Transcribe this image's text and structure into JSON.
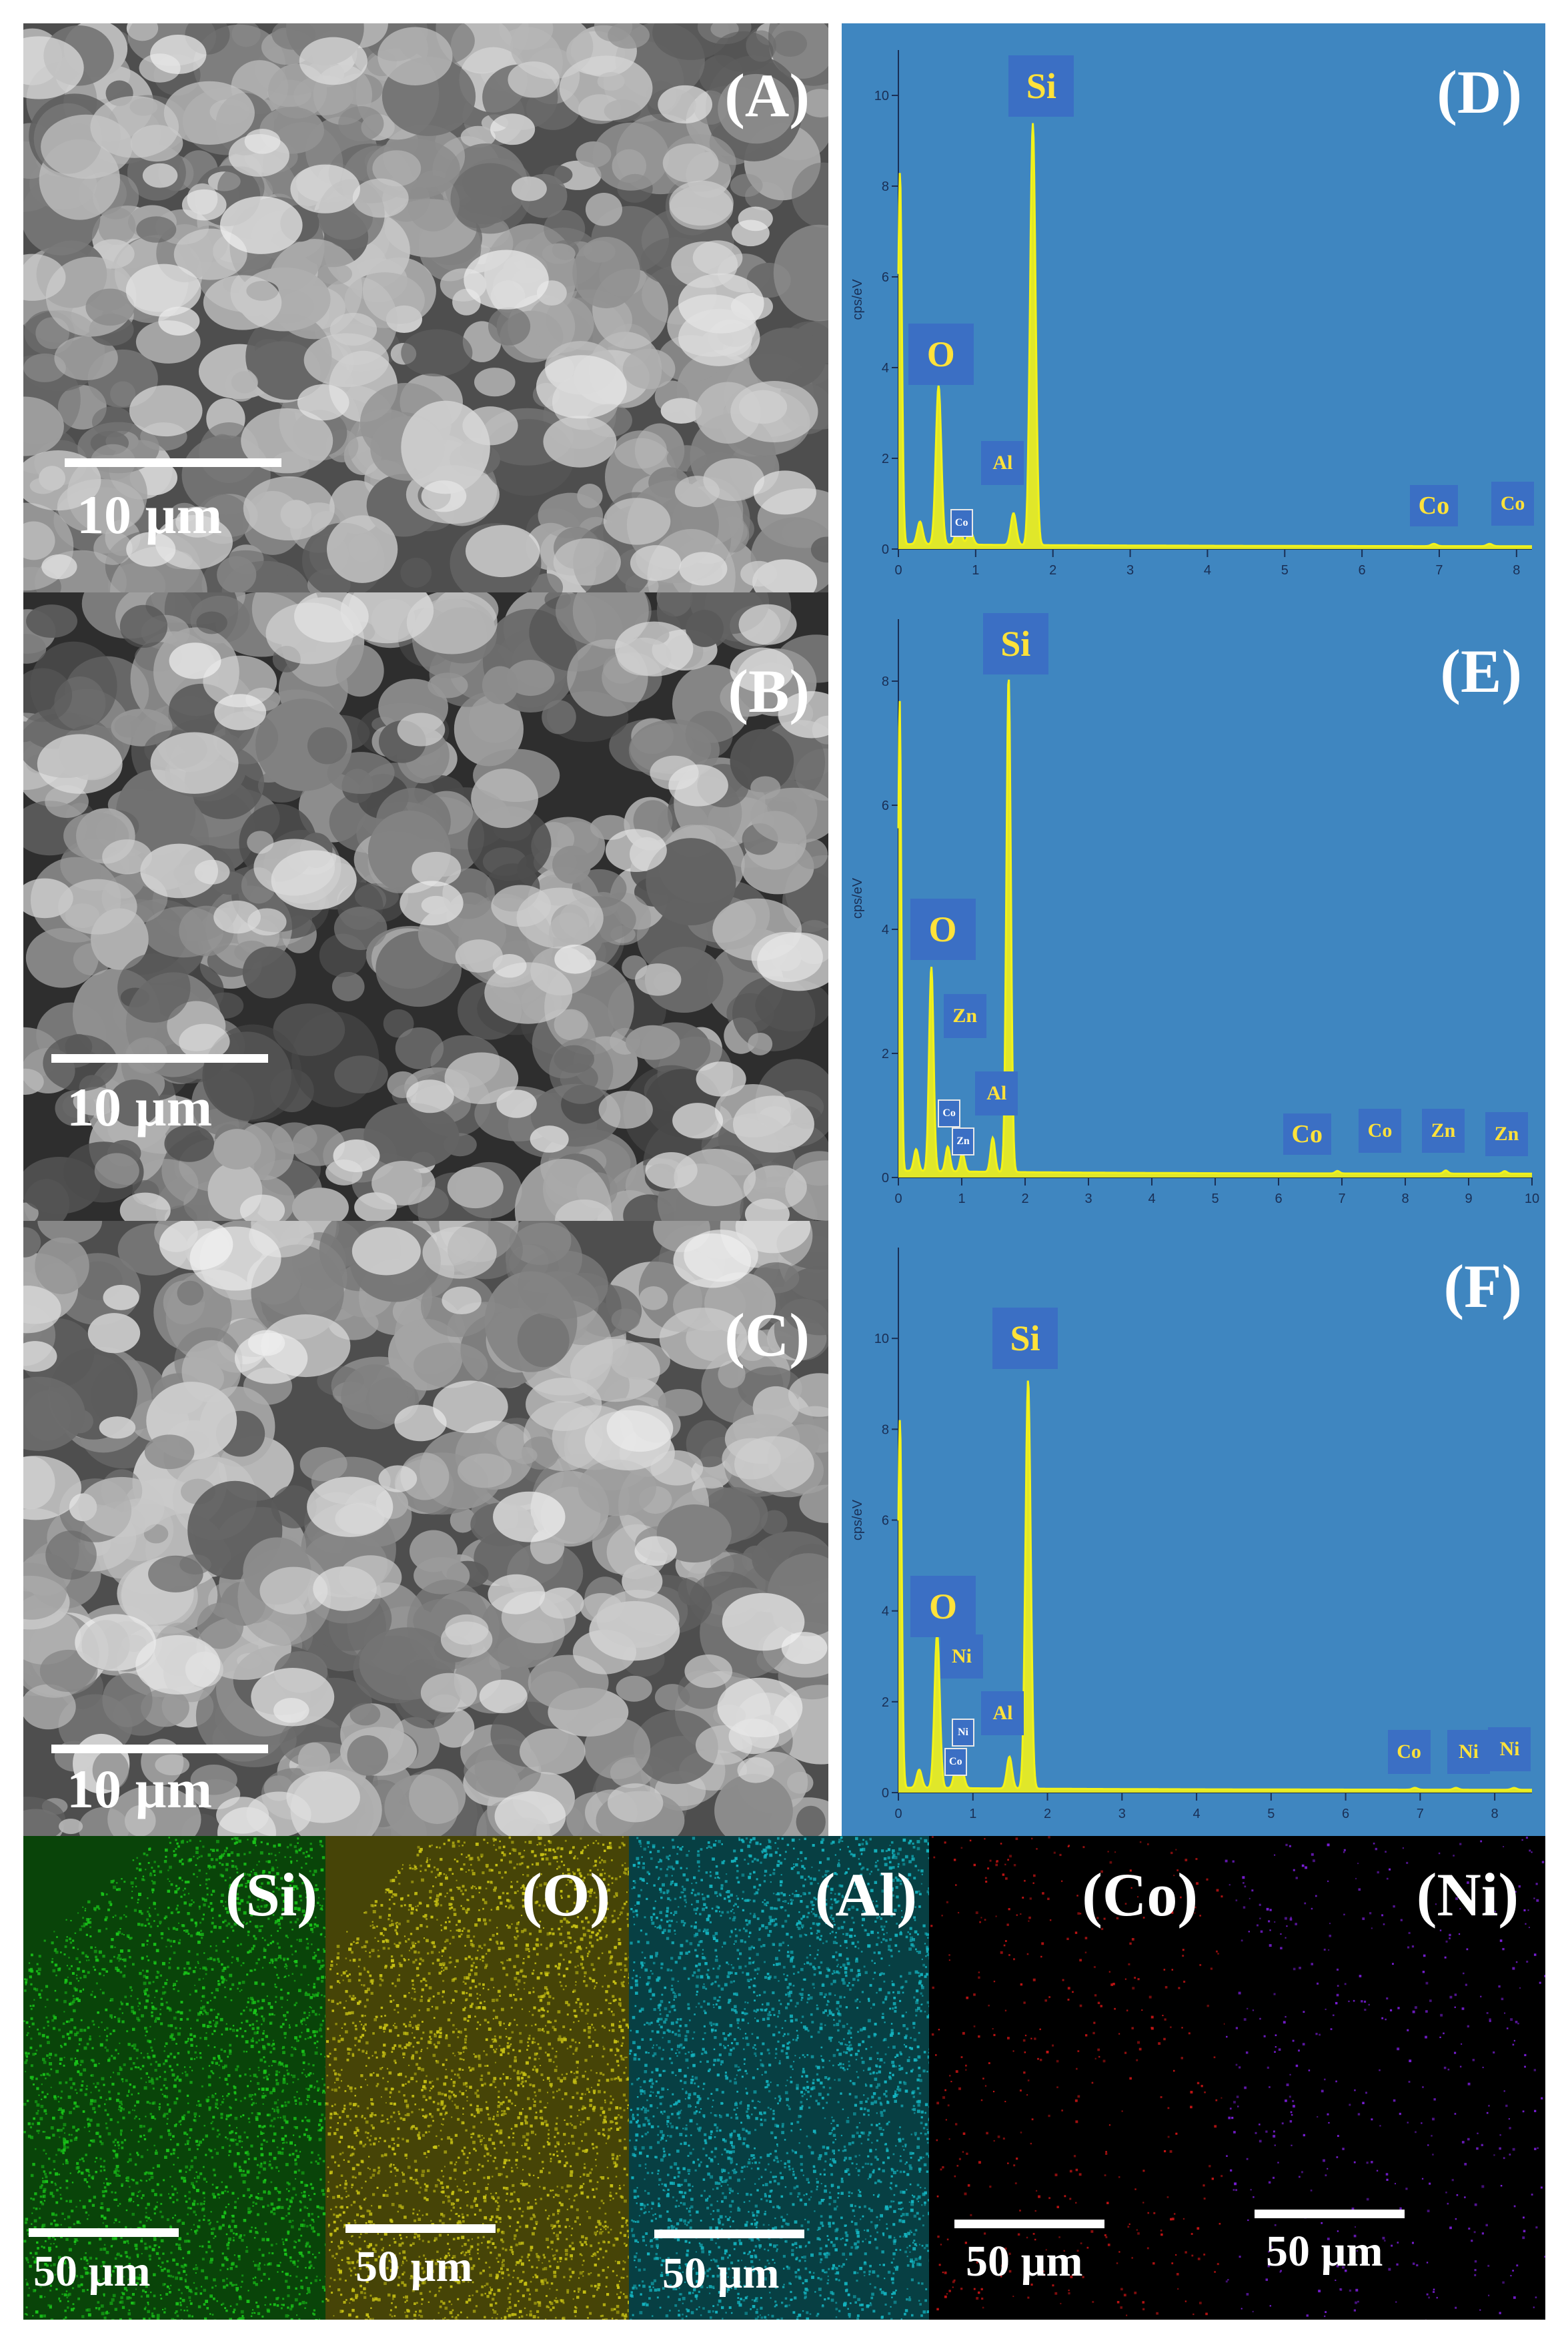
{
  "sem_panels": [
    {
      "label": "(A)",
      "scale": "10 µm"
    },
    {
      "label": "(B)",
      "scale": "10 µm"
    },
    {
      "label": "(C)",
      "scale": "10 µm"
    }
  ],
  "chart_data": [
    {
      "type": "line",
      "panel_label": "(D)",
      "ylabel": "cps/eV",
      "xlim": [
        0,
        8.2
      ],
      "ylim": [
        0,
        11
      ],
      "x_ticks": [
        0,
        1,
        2,
        3,
        4,
        5,
        6,
        7,
        8
      ],
      "y_ticks": [
        0,
        2,
        4,
        6,
        8,
        10
      ],
      "peaks": [
        {
          "x": 0.02,
          "y": 8.2
        },
        {
          "x": 0.28,
          "y": 0.5
        },
        {
          "x": 0.52,
          "y": 3.5
        },
        {
          "x": 0.78,
          "y": 0.5
        },
        {
          "x": 0.93,
          "y": 0.3
        },
        {
          "x": 1.49,
          "y": 0.7
        },
        {
          "x": 1.74,
          "y": 9.3
        },
        {
          "x": 6.93,
          "y": 0.05
        },
        {
          "x": 7.65,
          "y": 0.05
        }
      ],
      "element_labels": [
        {
          "text": "Si",
          "x": 1.85,
          "y": 10.2,
          "size": "large"
        },
        {
          "text": "O",
          "x": 0.55,
          "y": 4.3,
          "size": "large"
        },
        {
          "text": "Al",
          "x": 1.35,
          "y": 1.9,
          "size": "small"
        },
        {
          "text": "Co",
          "x": 0.8,
          "y": 0.6,
          "size": "tiny"
        },
        {
          "text": "Co",
          "x": 6.93,
          "y": 0.95,
          "size": "medium"
        },
        {
          "text": "Co",
          "x": 7.95,
          "y": 1.0,
          "size": "small"
        }
      ]
    },
    {
      "type": "line",
      "panel_label": "(E)",
      "ylabel": "cps/eV",
      "xlim": [
        0,
        10
      ],
      "ylim": [
        0,
        9
      ],
      "x_ticks": [
        0,
        1,
        2,
        3,
        4,
        5,
        6,
        7,
        8,
        9,
        10
      ],
      "y_ticks": [
        0,
        2,
        4,
        6,
        8
      ],
      "peaks": [
        {
          "x": 0.02,
          "y": 7.6
        },
        {
          "x": 0.28,
          "y": 0.35
        },
        {
          "x": 0.52,
          "y": 3.3
        },
        {
          "x": 0.78,
          "y": 0.4
        },
        {
          "x": 1.01,
          "y": 0.3
        },
        {
          "x": 1.49,
          "y": 0.55
        },
        {
          "x": 1.74,
          "y": 8.0
        },
        {
          "x": 6.93,
          "y": 0.04
        },
        {
          "x": 8.64,
          "y": 0.05
        },
        {
          "x": 9.57,
          "y": 0.04
        }
      ],
      "element_labels": [
        {
          "text": "Si",
          "x": 1.85,
          "y": 8.6,
          "size": "large"
        },
        {
          "text": "O",
          "x": 0.7,
          "y": 4.0,
          "size": "large"
        },
        {
          "text": "Zn",
          "x": 1.05,
          "y": 2.6,
          "size": "small"
        },
        {
          "text": "Al",
          "x": 1.55,
          "y": 1.35,
          "size": "small"
        },
        {
          "text": "Co",
          "x": 0.78,
          "y": 1.05,
          "size": "tiny"
        },
        {
          "text": "Zn",
          "x": 1.0,
          "y": 0.6,
          "size": "tiny"
        },
        {
          "text": "Co",
          "x": 6.45,
          "y": 0.7,
          "size": "medium"
        },
        {
          "text": "Co",
          "x": 7.6,
          "y": 0.75,
          "size": "small"
        },
        {
          "text": "Zn",
          "x": 8.6,
          "y": 0.75,
          "size": "small"
        },
        {
          "text": "Zn",
          "x": 9.6,
          "y": 0.7,
          "size": "small"
        }
      ]
    },
    {
      "type": "line",
      "panel_label": "(F)",
      "ylabel": "cps/eV",
      "xlim": [
        0,
        8.5
      ],
      "ylim": [
        0,
        12
      ],
      "x_ticks": [
        0,
        1,
        2,
        3,
        4,
        5,
        6,
        7,
        8
      ],
      "y_ticks": [
        0,
        2,
        4,
        6,
        8,
        10
      ],
      "peaks": [
        {
          "x": 0.02,
          "y": 8.1
        },
        {
          "x": 0.28,
          "y": 0.4
        },
        {
          "x": 0.52,
          "y": 3.4
        },
        {
          "x": 0.78,
          "y": 0.5
        },
        {
          "x": 0.85,
          "y": 0.4
        },
        {
          "x": 1.49,
          "y": 0.7
        },
        {
          "x": 1.74,
          "y": 9.0
        },
        {
          "x": 6.93,
          "y": 0.04
        },
        {
          "x": 7.48,
          "y": 0.04
        },
        {
          "x": 8.26,
          "y": 0.04
        }
      ],
      "element_labels": [
        {
          "text": "Si",
          "x": 1.7,
          "y": 10.0,
          "size": "large"
        },
        {
          "text": "O",
          "x": 0.6,
          "y": 4.1,
          "size": "large"
        },
        {
          "text": "Ni",
          "x": 0.85,
          "y": 3.0,
          "size": "small"
        },
        {
          "text": "Al",
          "x": 1.4,
          "y": 1.75,
          "size": "small"
        },
        {
          "text": "Ni",
          "x": 0.85,
          "y": 1.35,
          "size": "tiny"
        },
        {
          "text": "Co",
          "x": 0.75,
          "y": 0.7,
          "size": "tiny"
        },
        {
          "text": "Co",
          "x": 6.85,
          "y": 0.9,
          "size": "small"
        },
        {
          "text": "Ni",
          "x": 7.65,
          "y": 0.9,
          "size": "small"
        },
        {
          "text": "Ni",
          "x": 8.2,
          "y": 0.95,
          "size": "small"
        }
      ]
    }
  ],
  "maps": [
    {
      "label": "(Si)",
      "scale": "50 µm",
      "color": "#19c419"
    },
    {
      "label": "(O)",
      "scale": "50 µm",
      "color": "#c8c214"
    },
    {
      "label": "(Al)",
      "scale": "50 µm",
      "color": "#14b4c0"
    },
    {
      "label": "(Co)",
      "scale": "50 µm",
      "color": "#c41414"
    },
    {
      "label": "(Ni)",
      "scale": "50 µm",
      "color": "#7a1ed8"
    }
  ],
  "colors": {
    "spectrum": "#f2f21a",
    "eds_bg": "#3f86c0",
    "label_box": "#3b6fc4",
    "label_text": "#ffe23a"
  }
}
